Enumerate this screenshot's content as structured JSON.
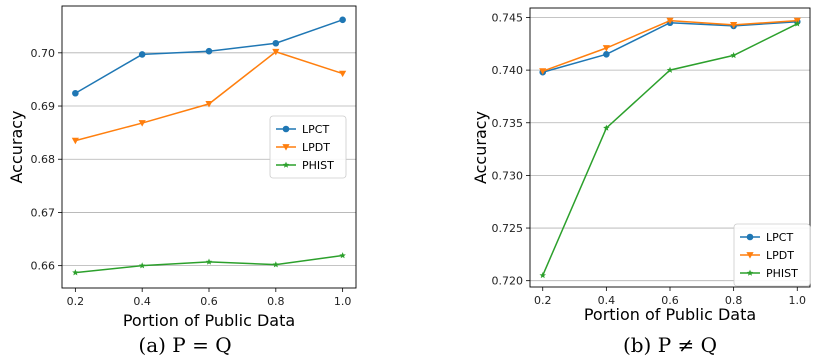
{
  "chart_data": [
    {
      "type": "line",
      "caption": "(a) P = Q",
      "xlabel": "Portion of Public Data",
      "ylabel": "Accuracy",
      "x": [
        0.2,
        0.4,
        0.6,
        0.8,
        1.0
      ],
      "x_ticks": [
        "0.2",
        "0.4",
        "0.6",
        "0.8",
        "1.0"
      ],
      "xlim": [
        0.16,
        1.04
      ],
      "ylim": [
        0.6558,
        0.7088
      ],
      "y_ticks": [
        "0.66",
        "0.67",
        "0.68",
        "0.69",
        "0.70"
      ],
      "y_tick_values": [
        0.66,
        0.67,
        0.68,
        0.69,
        0.7
      ],
      "grid": "horizontal",
      "legend_position": "center-right",
      "series": [
        {
          "name": "LPCT",
          "color": "#1f77b4",
          "marker": "circle",
          "values": [
            0.6924,
            0.6997,
            0.7003,
            0.7018,
            0.7062
          ]
        },
        {
          "name": "LPDT",
          "color": "#ff7f0e",
          "marker": "triangle-down",
          "values": [
            0.6835,
            0.6868,
            0.6904,
            0.7002,
            0.6961
          ]
        },
        {
          "name": "PHIST",
          "color": "#2ca02c",
          "marker": "star",
          "values": [
            0.6587,
            0.66,
            0.6607,
            0.6602,
            0.6619
          ]
        }
      ]
    },
    {
      "type": "line",
      "caption": "(b) P ≠ Q",
      "xlabel": "Portion of Public Data",
      "ylabel": "Accuracy",
      "x": [
        0.2,
        0.4,
        0.6,
        0.8,
        1.0
      ],
      "x_ticks": [
        "0.2",
        "0.4",
        "0.6",
        "0.8",
        "1.0"
      ],
      "xlim": [
        0.16,
        1.04
      ],
      "ylim": [
        0.7194,
        0.7459
      ],
      "y_ticks": [
        "0.720",
        "0.725",
        "0.730",
        "0.735",
        "0.740",
        "0.745"
      ],
      "y_tick_values": [
        0.72,
        0.725,
        0.73,
        0.735,
        0.74,
        0.745
      ],
      "grid": "horizontal",
      "legend_position": "lower-right",
      "series": [
        {
          "name": "LPCT",
          "color": "#1f77b4",
          "marker": "circle",
          "values": [
            0.7398,
            0.7415,
            0.7445,
            0.7442,
            0.7446
          ]
        },
        {
          "name": "LPDT",
          "color": "#ff7f0e",
          "marker": "triangle-down",
          "values": [
            0.7399,
            0.7421,
            0.7447,
            0.7443,
            0.7447
          ]
        },
        {
          "name": "PHIST",
          "color": "#2ca02c",
          "marker": "star",
          "values": [
            0.7205,
            0.7345,
            0.74,
            0.7414,
            0.7444
          ]
        }
      ]
    }
  ]
}
